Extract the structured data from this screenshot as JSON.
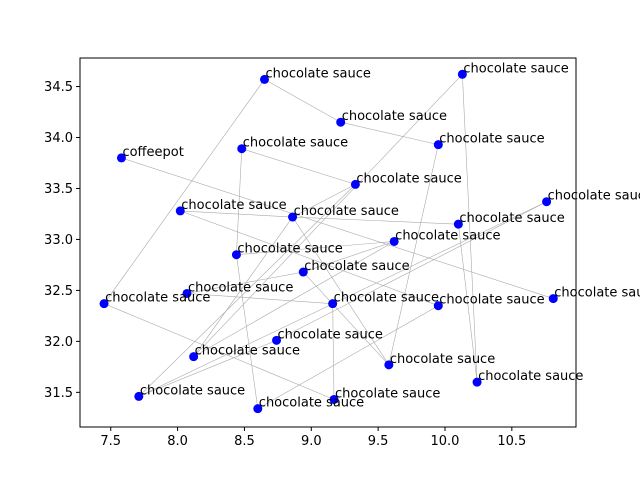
{
  "chart_data": {
    "type": "scatter",
    "title": "",
    "xlabel": "",
    "ylabel": "",
    "xlim": [
      7.27,
      10.98
    ],
    "ylim": [
      31.16,
      34.78
    ],
    "xticks": [
      7.5,
      8.0,
      8.5,
      9.0,
      9.5,
      10.0,
      10.5
    ],
    "xtick_labels": [
      "7.5",
      "8.0",
      "8.5",
      "9.0",
      "9.5",
      "10.0",
      "10.5"
    ],
    "yticks": [
      31.5,
      32.0,
      32.5,
      33.0,
      33.5,
      34.0,
      34.5
    ],
    "ytick_labels": [
      "31.5",
      "32.0",
      "32.5",
      "33.0",
      "33.5",
      "34.0",
      "34.5"
    ],
    "grid": false,
    "point_color": "#0000ff",
    "line_color": "#aaaaaa",
    "points": [
      {
        "x": 8.65,
        "y": 34.57,
        "label": "chocolate sauce"
      },
      {
        "x": 9.22,
        "y": 34.15,
        "label": "chocolate sauce"
      },
      {
        "x": 9.95,
        "y": 33.93,
        "label": "chocolate sauce"
      },
      {
        "x": 10.13,
        "y": 34.62,
        "label": "chocolate sauce"
      },
      {
        "x": 7.58,
        "y": 33.8,
        "label": "coffeepot"
      },
      {
        "x": 8.48,
        "y": 33.89,
        "label": "chocolate sauce"
      },
      {
        "x": 9.33,
        "y": 33.54,
        "label": "chocolate sauce"
      },
      {
        "x": 10.76,
        "y": 33.37,
        "label": "chocolate sauce"
      },
      {
        "x": 8.02,
        "y": 33.28,
        "label": "chocolate sauce"
      },
      {
        "x": 8.86,
        "y": 33.22,
        "label": "chocolate sauce"
      },
      {
        "x": 10.1,
        "y": 33.15,
        "label": "chocolate sauce"
      },
      {
        "x": 9.62,
        "y": 32.98,
        "label": "chocolate sauce"
      },
      {
        "x": 8.44,
        "y": 32.85,
        "label": "chocolate sauce"
      },
      {
        "x": 8.94,
        "y": 32.68,
        "label": "chocolate sauce"
      },
      {
        "x": 8.07,
        "y": 32.47,
        "label": "chocolate sauce"
      },
      {
        "x": 10.81,
        "y": 32.42,
        "label": "chocolate sauce"
      },
      {
        "x": 7.45,
        "y": 32.37,
        "label": "chocolate sauce"
      },
      {
        "x": 9.16,
        "y": 32.37,
        "label": "chocolate sauce"
      },
      {
        "x": 9.95,
        "y": 32.35,
        "label": "chocolate sauce"
      },
      {
        "x": 8.74,
        "y": 32.01,
        "label": "chocolate sauce"
      },
      {
        "x": 8.12,
        "y": 31.85,
        "label": "chocolate sauce"
      },
      {
        "x": 9.58,
        "y": 31.77,
        "label": "chocolate sauce"
      },
      {
        "x": 10.24,
        "y": 31.6,
        "label": "chocolate sauce"
      },
      {
        "x": 7.71,
        "y": 31.46,
        "label": "chocolate sauce"
      },
      {
        "x": 9.17,
        "y": 31.43,
        "label": "chocolate sauce"
      },
      {
        "x": 8.6,
        "y": 31.34,
        "label": "chocolate sauce"
      }
    ],
    "edges": [
      [
        0,
        1
      ],
      [
        1,
        2
      ],
      [
        0,
        16
      ],
      [
        3,
        20
      ],
      [
        3,
        22
      ],
      [
        4,
        15
      ],
      [
        5,
        6
      ],
      [
        5,
        12
      ],
      [
        6,
        9
      ],
      [
        7,
        23
      ],
      [
        7,
        19
      ],
      [
        8,
        18
      ],
      [
        8,
        9
      ],
      [
        9,
        10
      ],
      [
        9,
        21
      ],
      [
        9,
        20
      ],
      [
        10,
        22
      ],
      [
        11,
        12
      ],
      [
        11,
        20
      ],
      [
        12,
        25
      ],
      [
        13,
        14
      ],
      [
        13,
        11
      ],
      [
        14,
        17
      ],
      [
        16,
        24
      ],
      [
        17,
        24
      ],
      [
        18,
        25
      ],
      [
        19,
        23
      ],
      [
        2,
        21
      ],
      [
        13,
        21
      ],
      [
        6,
        23
      ]
    ]
  }
}
